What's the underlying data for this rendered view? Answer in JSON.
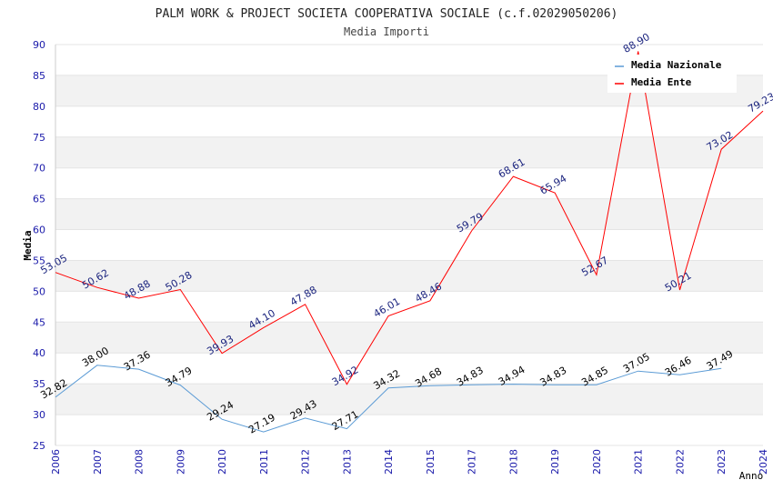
{
  "chart_data": {
    "type": "line",
    "title": "PALM WORK & PROJECT SOCIETA COOPERATIVA SOCIALE (c.f.02029050206)",
    "subtitle": "Media Importi",
    "xlabel": "Anno",
    "ylabel": "Media",
    "ylim": [
      25,
      90
    ],
    "yticks": [
      "25",
      "30",
      "35",
      "40",
      "45",
      "50",
      "55",
      "60",
      "65",
      "70",
      "75",
      "80",
      "85",
      "90"
    ],
    "categories": [
      "2006",
      "2007",
      "2008",
      "2009",
      "2010",
      "2011",
      "2012",
      "2013",
      "2014",
      "2015",
      "2017",
      "2018",
      "2019",
      "2020",
      "2021",
      "2022",
      "2023",
      "2024"
    ],
    "grid": true,
    "legend_position": "top-right",
    "series": [
      {
        "name": "Media Nazionale",
        "color": "#5b9bd5",
        "label_color": "#000000",
        "values": [
          32.82,
          38.0,
          37.36,
          34.79,
          29.24,
          27.19,
          29.43,
          27.71,
          34.32,
          34.68,
          34.83,
          34.94,
          34.83,
          34.85,
          37.05,
          36.46,
          37.49,
          null
        ],
        "labels": [
          "32.82",
          "38.00",
          "37.36",
          "34.79",
          "29.24",
          "27.19",
          "29.43",
          "27.71",
          "34.32",
          "34.68",
          "34.83",
          "34.94",
          "34.83",
          "34.85",
          "37.05",
          "36.46",
          "37.49",
          ""
        ]
      },
      {
        "name": "Media Ente",
        "color": "#ff0000",
        "label_color": "#1a237e",
        "values": [
          53.05,
          50.62,
          48.88,
          50.28,
          39.93,
          44.1,
          47.88,
          34.92,
          46.01,
          48.46,
          59.79,
          68.61,
          65.94,
          52.67,
          88.9,
          50.21,
          73.02,
          79.23
        ],
        "labels": [
          "53.05",
          "50.62",
          "48.88",
          "50.28",
          "39.93",
          "44.10",
          "47.88",
          "34.92",
          "46.01",
          "48.46",
          "59.79",
          "68.61",
          "65.94",
          "52.67",
          "88.90",
          "50.21",
          "73.02",
          "79.23"
        ]
      }
    ]
  }
}
